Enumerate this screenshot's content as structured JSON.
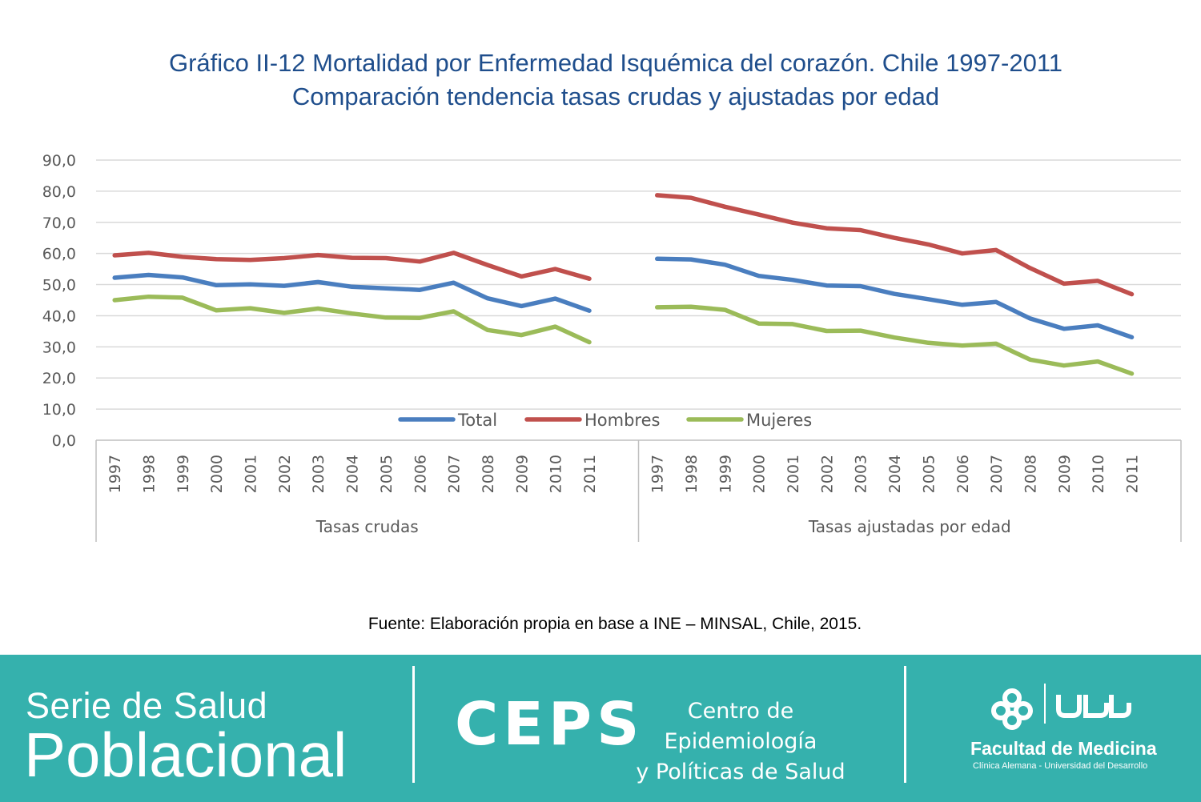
{
  "title_line1": "Gráfico II-12 Mortalidad por Enfermedad Isquémica del corazón. Chile 1997-2011",
  "title_line2": "Comparación tendencia tasas crudas y ajustadas por edad",
  "source": "Fuente: Elaboración propia en base a INE – MINSAL, Chile, 2015.",
  "chart_data": {
    "type": "line",
    "y_ticks": [
      "0,0",
      "10,0",
      "20,0",
      "30,0",
      "40,0",
      "50,0",
      "60,0",
      "70,0",
      "80,0",
      "90,0"
    ],
    "ylim": [
      0,
      90
    ],
    "grid": true,
    "legend_position": "bottom-inside",
    "categories": [
      "1997",
      "1998",
      "1999",
      "2000",
      "2001",
      "2002",
      "2003",
      "2004",
      "2005",
      "2006",
      "2007",
      "2008",
      "2009",
      "2010",
      "2011"
    ],
    "groups": [
      {
        "label": "Tasas crudas",
        "series": [
          {
            "name": "Total",
            "color": "#4a7ebf",
            "values": [
              52.2,
              53.1,
              52.3,
              49.8,
              50.1,
              49.6,
              50.8,
              49.3,
              48.8,
              48.3,
              50.6,
              45.6,
              43.1,
              45.5,
              41.6
            ]
          },
          {
            "name": "Hombres",
            "color": "#c0504d",
            "values": [
              59.4,
              60.2,
              58.9,
              58.2,
              57.9,
              58.5,
              59.5,
              58.6,
              58.5,
              57.4,
              60.2,
              56.3,
              52.6,
              55.0,
              51.9
            ]
          },
          {
            "name": "Mujeres",
            "color": "#9bbb59",
            "values": [
              45.0,
              46.1,
              45.8,
              41.7,
              42.4,
              40.9,
              42.3,
              40.7,
              39.4,
              39.3,
              41.4,
              35.4,
              33.8,
              36.5,
              31.5
            ]
          }
        ]
      },
      {
        "label": "Tasas ajustadas por edad",
        "series": [
          {
            "name": "Total",
            "color": "#4a7ebf",
            "values": [
              58.3,
              58.1,
              56.4,
              52.8,
              51.5,
              49.7,
              49.5,
              47.0,
              45.3,
              43.5,
              44.4,
              39.1,
              35.8,
              36.9,
              33.1
            ]
          },
          {
            "name": "Hombres",
            "color": "#c0504d",
            "values": [
              78.7,
              77.9,
              75.0,
              72.5,
              69.9,
              68.1,
              67.5,
              65.0,
              62.9,
              60.0,
              61.1,
              55.3,
              50.3,
              51.2,
              46.9
            ]
          },
          {
            "name": "Mujeres",
            "color": "#9bbb59",
            "values": [
              42.7,
              42.9,
              41.9,
              37.5,
              37.3,
              35.1,
              35.2,
              33.0,
              31.3,
              30.4,
              31.0,
              25.9,
              24.0,
              25.3,
              21.4
            ]
          }
        ]
      }
    ],
    "legend": [
      {
        "name": "Total",
        "color": "#4a7ebf"
      },
      {
        "name": "Hombres",
        "color": "#c0504d"
      },
      {
        "name": "Mujeres",
        "color": "#9bbb59"
      }
    ]
  },
  "footer": {
    "serie_line1": "Serie de Salud",
    "serie_line2": "Poblacional",
    "ceps_logo": "CEPS",
    "ceps_line1": "Centro de Epidemiología",
    "ceps_line2": "y Políticas de Salud",
    "udd_logo": "UDD",
    "facultad": "Facultad de Medicina",
    "facultad_sub": "Clínica Alemana - Universidad del Desarrollo"
  }
}
